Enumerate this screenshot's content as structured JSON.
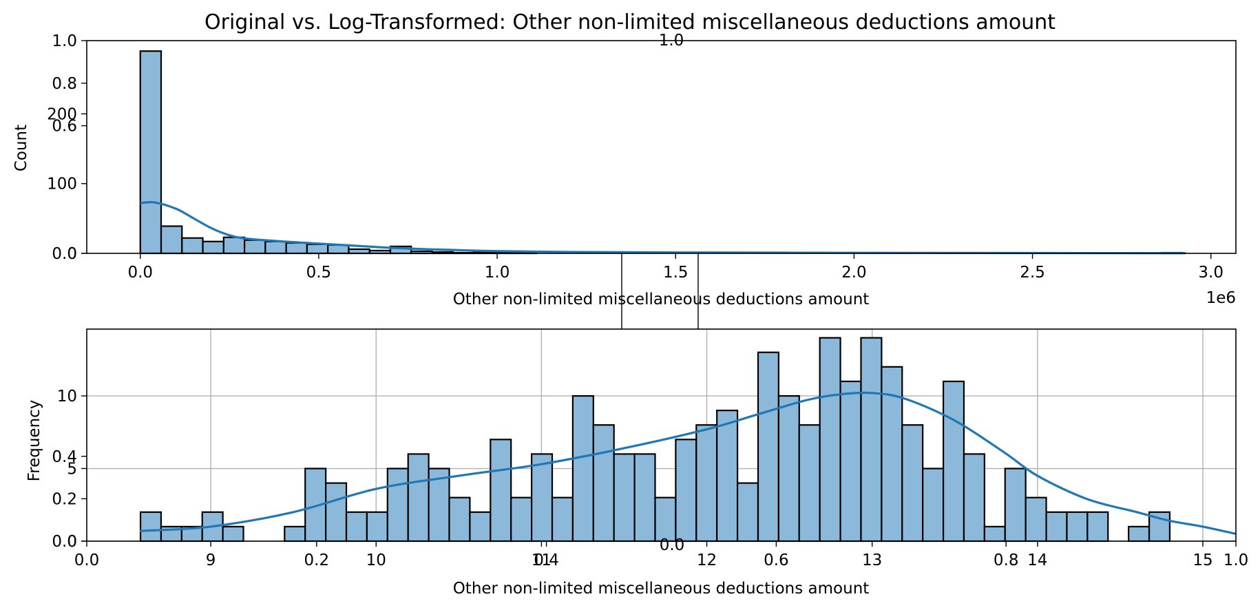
{
  "chart_data": [
    {
      "type": "bar",
      "name": "original",
      "title": "Original vs. Log-Transformed: Other non-limited miscellaneous deductions amount",
      "xlabel": "Other non-limited miscellaneous deductions amount",
      "ylabel": "Count",
      "x_offset_label": "1e6",
      "xlim": [
        -0.15,
        3.07
      ],
      "ylim": [
        0,
        305
      ],
      "x_ticks": [
        {
          "value": 0.0,
          "label": "0.0"
        },
        {
          "value": 0.5,
          "label": "0.5"
        },
        {
          "value": 1.0,
          "label": "1.0"
        },
        {
          "value": 1.5,
          "label": "1.5"
        },
        {
          "value": 2.0,
          "label": "2.0"
        },
        {
          "value": 2.5,
          "label": "2.5"
        },
        {
          "value": 3.0,
          "label": "3.0"
        }
      ],
      "y_ticks": [
        {
          "value": 0,
          "label": "0"
        },
        {
          "value": 100,
          "label": "100"
        },
        {
          "value": 200,
          "label": "200"
        }
      ],
      "twin_y_ticks": [
        {
          "frac": 0.0,
          "label": "0.0"
        },
        {
          "frac": 0.6,
          "label": "0.6"
        },
        {
          "frac": 0.8,
          "label": "0.8"
        },
        {
          "frac": 1.0,
          "label": "1.0"
        }
      ],
      "bin_start": 0.0,
      "bin_width": 0.0584,
      "values": [
        290,
        39,
        22,
        17,
        23,
        19,
        17,
        15,
        13,
        12,
        6,
        4,
        10,
        3,
        2,
        1,
        2,
        1,
        1,
        0,
        0,
        0,
        0,
        0,
        0,
        0,
        0,
        0,
        0,
        0,
        0,
        0,
        0,
        0,
        0,
        0,
        0,
        0,
        0,
        0,
        0,
        0,
        0,
        0,
        0,
        0,
        0,
        0,
        0,
        1
      ],
      "kde": {
        "x": [
          0,
          0.04,
          0.1,
          0.15,
          0.2,
          0.25,
          0.3,
          0.4,
          0.5,
          0.6,
          0.7,
          0.8,
          0.9,
          1.0,
          1.2,
          1.5,
          2.0,
          2.5,
          2.93
        ],
        "y": [
          72,
          73,
          64,
          50,
          36,
          26,
          21,
          17,
          14,
          11,
          8,
          6,
          4.5,
          3.2,
          2,
          1.3,
          0.8,
          0.5,
          0.3
        ]
      }
    },
    {
      "type": "bar",
      "name": "log_transformed",
      "xlabel": "Other non-limited miscellaneous deductions amount",
      "ylabel": "Frequency",
      "grid": true,
      "xlim": [
        8.25,
        15.2
      ],
      "ylim": [
        0,
        14.6
      ],
      "x_ticks": [
        {
          "value": 9,
          "label": "9"
        },
        {
          "value": 10,
          "label": "10"
        },
        {
          "value": 11,
          "label": "11"
        },
        {
          "value": 12,
          "label": "12"
        },
        {
          "value": 13,
          "label": "13"
        },
        {
          "value": 14,
          "label": "14"
        },
        {
          "value": 15,
          "label": "15"
        }
      ],
      "y_ticks": [
        {
          "value": 0,
          "label": "0"
        },
        {
          "value": 5,
          "label": "5"
        },
        {
          "value": 10,
          "label": "10"
        }
      ],
      "twin_x_ticks": [
        {
          "frac": 0.0,
          "label": "0.0"
        },
        {
          "frac": 0.2,
          "label": "0.2"
        },
        {
          "frac": 0.4,
          "label": "0.4"
        },
        {
          "frac": 0.6,
          "label": "0.6"
        },
        {
          "frac": 0.8,
          "label": "0.8"
        },
        {
          "frac": 1.0,
          "label": "1.0"
        }
      ],
      "twin_y_ticks": [
        {
          "frac": 0.0,
          "label": "0.0"
        },
        {
          "frac": 0.2,
          "label": "0.2"
        },
        {
          "frac": 0.4,
          "label": "0.4"
        }
      ],
      "stray_labels": [
        "0.0",
        "1.0"
      ],
      "bin_start": 8.575,
      "bin_width": 0.1245,
      "values": [
        2,
        1,
        1,
        2,
        1,
        0,
        0,
        1,
        5,
        4,
        2,
        2,
        5,
        6,
        5,
        3,
        2,
        7,
        3,
        6,
        3,
        10,
        8,
        6,
        6,
        3,
        7,
        8,
        9,
        4,
        13,
        10,
        8,
        14,
        11,
        14,
        12,
        8,
        5,
        11,
        6,
        1,
        5,
        3,
        2,
        2,
        2,
        0,
        1,
        2
      ],
      "kde": {
        "x": [
          8.57,
          9.0,
          9.5,
          10.0,
          10.5,
          11.0,
          11.5,
          12.0,
          12.3,
          12.6,
          12.8,
          13.0,
          13.2,
          13.5,
          13.8,
          14.0,
          14.3,
          14.6,
          14.8,
          15.0,
          15.2
        ],
        "y": [
          0.7,
          1.0,
          2.0,
          3.6,
          4.5,
          5.3,
          6.4,
          7.7,
          8.7,
          9.7,
          10.1,
          10.2,
          9.8,
          8.3,
          6.1,
          4.5,
          2.9,
          2.0,
          1.4,
          1.0,
          0.5
        ]
      }
    }
  ]
}
